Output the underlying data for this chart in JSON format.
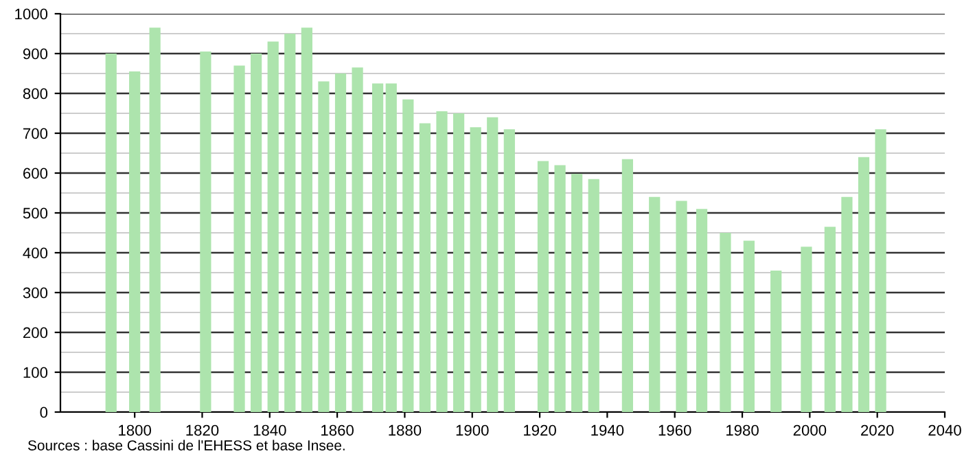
{
  "chart_data": {
    "type": "bar",
    "x": [
      1793,
      1800,
      1806,
      1821,
      1831,
      1836,
      1841,
      1846,
      1851,
      1856,
      1861,
      1866,
      1872,
      1876,
      1881,
      1886,
      1891,
      1896,
      1901,
      1906,
      1911,
      1921,
      1926,
      1931,
      1936,
      1946,
      1954,
      1962,
      1968,
      1975,
      1982,
      1990,
      1999,
      2006,
      2011,
      2016,
      2021
    ],
    "values": [
      900,
      855,
      965,
      905,
      870,
      900,
      930,
      950,
      965,
      830,
      850,
      865,
      825,
      825,
      785,
      725,
      755,
      750,
      715,
      740,
      710,
      630,
      620,
      598,
      585,
      635,
      540,
      530,
      510,
      450,
      430,
      355,
      415,
      465,
      540,
      640,
      710
    ],
    "color": "#ade4ad",
    "xlim": [
      1778,
      2040
    ],
    "xticks": [
      1800,
      1820,
      1840,
      1860,
      1880,
      1900,
      1920,
      1940,
      1960,
      1980,
      2000,
      2020,
      2040
    ],
    "ylim": [
      0,
      1000
    ],
    "yticks": [
      0,
      100,
      200,
      300,
      400,
      500,
      600,
      700,
      800,
      900,
      1000
    ],
    "grid": "y",
    "annotations": [
      "Sources : base Cassini de l'EHESS et base Insee."
    ]
  }
}
